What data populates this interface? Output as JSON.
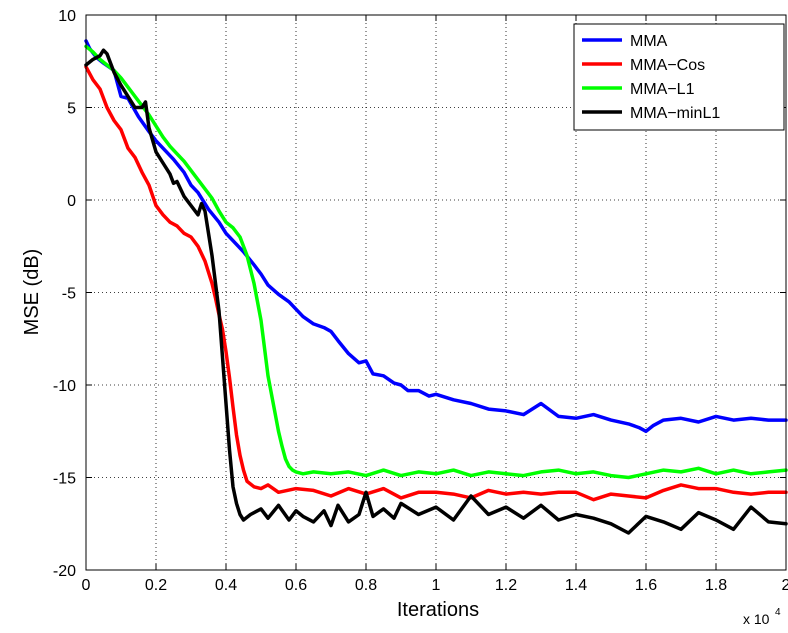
{
  "chart_data": {
    "type": "line",
    "xlabel": "Iterations",
    "ylabel": "MSE (dB)",
    "x_multiplier": "x 10",
    "x_multiplier_exp": "4",
    "xlim": [
      0,
      2
    ],
    "ylim": [
      -20,
      10
    ],
    "grid": true,
    "legend_position": "top-right",
    "x_ticks": [
      "0",
      "0.2",
      "0.4",
      "0.6",
      "0.8",
      "1",
      "1.2",
      "1.4",
      "1.6",
      "1.8",
      "2"
    ],
    "y_ticks": [
      "10",
      "5",
      "0",
      "-5",
      "-10",
      "-15",
      "-20"
    ],
    "series": [
      {
        "name": "MMA",
        "color": "#0000ff",
        "x": [
          0,
          0.01,
          0.03,
          0.05,
          0.08,
          0.1,
          0.12,
          0.15,
          0.18,
          0.2,
          0.22,
          0.25,
          0.28,
          0.3,
          0.32,
          0.35,
          0.38,
          0.4,
          0.42,
          0.45,
          0.48,
          0.5,
          0.52,
          0.55,
          0.58,
          0.6,
          0.62,
          0.65,
          0.68,
          0.7,
          0.72,
          0.75,
          0.78,
          0.8,
          0.82,
          0.85,
          0.88,
          0.9,
          0.92,
          0.95,
          0.98,
          1.0,
          1.05,
          1.1,
          1.15,
          1.2,
          1.25,
          1.3,
          1.35,
          1.4,
          1.45,
          1.5,
          1.55,
          1.58,
          1.6,
          1.62,
          1.65,
          1.7,
          1.75,
          1.8,
          1.85,
          1.9,
          1.95,
          2.0
        ],
        "y": [
          8.6,
          8.2,
          7.7,
          7.4,
          7.0,
          5.6,
          5.5,
          4.5,
          3.7,
          3.2,
          2.8,
          2.2,
          1.5,
          0.8,
          0.4,
          -0.5,
          -1.2,
          -1.8,
          -2.2,
          -2.8,
          -3.5,
          -4.0,
          -4.6,
          -5.1,
          -5.5,
          -5.9,
          -6.3,
          -6.7,
          -6.9,
          -7.1,
          -7.6,
          -8.3,
          -8.8,
          -8.7,
          -9.4,
          -9.5,
          -9.9,
          -10.0,
          -10.3,
          -10.3,
          -10.6,
          -10.5,
          -10.8,
          -11.0,
          -11.3,
          -11.4,
          -11.6,
          -11.0,
          -11.7,
          -11.8,
          -11.6,
          -11.9,
          -12.1,
          -12.3,
          -12.5,
          -12.2,
          -11.9,
          -11.8,
          -12.0,
          -11.7,
          -11.9,
          -11.8,
          -11.9,
          -11.9
        ]
      },
      {
        "name": "MMA−Cos",
        "color": "#ff0000",
        "x": [
          0,
          0.02,
          0.04,
          0.06,
          0.08,
          0.1,
          0.12,
          0.14,
          0.16,
          0.18,
          0.2,
          0.22,
          0.24,
          0.26,
          0.28,
          0.3,
          0.32,
          0.34,
          0.36,
          0.37,
          0.38,
          0.39,
          0.4,
          0.41,
          0.42,
          0.43,
          0.44,
          0.45,
          0.46,
          0.48,
          0.5,
          0.52,
          0.55,
          0.6,
          0.65,
          0.7,
          0.75,
          0.8,
          0.85,
          0.9,
          0.95,
          1.0,
          1.05,
          1.1,
          1.15,
          1.2,
          1.25,
          1.3,
          1.35,
          1.4,
          1.45,
          1.5,
          1.55,
          1.6,
          1.65,
          1.7,
          1.75,
          1.8,
          1.85,
          1.9,
          1.95,
          2.0
        ],
        "y": [
          7.2,
          6.5,
          6.0,
          5.0,
          4.3,
          3.8,
          2.8,
          2.3,
          1.5,
          0.8,
          -0.3,
          -0.8,
          -1.2,
          -1.4,
          -1.8,
          -2.0,
          -2.5,
          -3.3,
          -4.5,
          -5.3,
          -6.2,
          -7.0,
          -8.2,
          -9.6,
          -11.2,
          -12.7,
          -13.8,
          -14.6,
          -15.2,
          -15.5,
          -15.6,
          -15.4,
          -15.8,
          -15.6,
          -15.7,
          -16.0,
          -15.6,
          -15.9,
          -15.6,
          -16.1,
          -15.8,
          -15.8,
          -15.9,
          -16.1,
          -15.7,
          -15.9,
          -15.8,
          -15.9,
          -15.8,
          -15.8,
          -16.2,
          -15.9,
          -16.0,
          -16.1,
          -15.7,
          -15.4,
          -15.6,
          -15.6,
          -15.8,
          -15.9,
          -15.8,
          -15.8
        ]
      },
      {
        "name": "MMA−L1",
        "color": "#00ff00",
        "x": [
          0,
          0.02,
          0.04,
          0.06,
          0.08,
          0.1,
          0.12,
          0.14,
          0.16,
          0.18,
          0.2,
          0.22,
          0.24,
          0.26,
          0.28,
          0.3,
          0.32,
          0.34,
          0.36,
          0.38,
          0.4,
          0.42,
          0.44,
          0.46,
          0.48,
          0.5,
          0.51,
          0.52,
          0.53,
          0.54,
          0.55,
          0.56,
          0.57,
          0.58,
          0.59,
          0.6,
          0.62,
          0.65,
          0.7,
          0.75,
          0.8,
          0.85,
          0.9,
          0.95,
          1.0,
          1.05,
          1.1,
          1.15,
          1.2,
          1.25,
          1.3,
          1.35,
          1.4,
          1.45,
          1.5,
          1.55,
          1.6,
          1.65,
          1.7,
          1.75,
          1.8,
          1.85,
          1.9,
          1.95,
          2.0
        ],
        "y": [
          8.3,
          8.0,
          7.6,
          7.3,
          7.0,
          6.6,
          6.1,
          5.6,
          5.1,
          4.6,
          4.0,
          3.4,
          2.9,
          2.5,
          2.1,
          1.6,
          1.1,
          0.6,
          0.1,
          -0.6,
          -1.2,
          -1.5,
          -2.0,
          -3.0,
          -4.5,
          -6.5,
          -8.0,
          -9.5,
          -10.5,
          -11.5,
          -12.5,
          -13.3,
          -14.0,
          -14.4,
          -14.6,
          -14.7,
          -14.8,
          -14.7,
          -14.8,
          -14.7,
          -14.9,
          -14.6,
          -14.9,
          -14.7,
          -14.8,
          -14.6,
          -14.9,
          -14.7,
          -14.8,
          -14.9,
          -14.7,
          -14.6,
          -14.8,
          -14.7,
          -14.9,
          -15.0,
          -14.8,
          -14.6,
          -14.7,
          -14.5,
          -14.8,
          -14.6,
          -14.8,
          -14.7,
          -14.6
        ]
      },
      {
        "name": "MMA−minL1",
        "color": "#000000",
        "x": [
          0,
          0.02,
          0.04,
          0.05,
          0.06,
          0.08,
          0.1,
          0.12,
          0.14,
          0.16,
          0.17,
          0.18,
          0.2,
          0.22,
          0.24,
          0.25,
          0.26,
          0.28,
          0.3,
          0.32,
          0.33,
          0.34,
          0.35,
          0.36,
          0.37,
          0.38,
          0.39,
          0.4,
          0.41,
          0.42,
          0.43,
          0.44,
          0.45,
          0.47,
          0.5,
          0.52,
          0.55,
          0.58,
          0.6,
          0.62,
          0.65,
          0.68,
          0.7,
          0.72,
          0.75,
          0.78,
          0.8,
          0.82,
          0.85,
          0.88,
          0.9,
          0.95,
          1.0,
          1.05,
          1.1,
          1.15,
          1.2,
          1.25,
          1.3,
          1.35,
          1.4,
          1.45,
          1.5,
          1.55,
          1.6,
          1.65,
          1.7,
          1.75,
          1.8,
          1.85,
          1.9,
          1.95,
          2.0
        ],
        "y": [
          7.3,
          7.6,
          7.8,
          8.1,
          7.9,
          6.9,
          6.2,
          5.6,
          5.0,
          5.0,
          5.3,
          3.9,
          2.6,
          2.0,
          1.4,
          0.9,
          1.0,
          0.2,
          -0.3,
          -0.8,
          -0.2,
          -0.6,
          -1.8,
          -3.0,
          -4.5,
          -6.0,
          -8.5,
          -11.0,
          -13.5,
          -15.5,
          -16.4,
          -17.0,
          -17.3,
          -17.0,
          -16.7,
          -17.2,
          -16.5,
          -17.3,
          -16.8,
          -17.1,
          -17.4,
          -16.8,
          -17.6,
          -16.5,
          -17.4,
          -17.0,
          -15.8,
          -17.1,
          -16.7,
          -17.2,
          -16.4,
          -17.0,
          -16.6,
          -17.3,
          -16.0,
          -17.0,
          -16.6,
          -17.2,
          -16.5,
          -17.3,
          -17.0,
          -17.2,
          -17.5,
          -18.0,
          -17.1,
          -17.4,
          -17.8,
          -16.9,
          -17.3,
          -17.8,
          -16.6,
          -17.4,
          -17.5
        ]
      }
    ]
  }
}
